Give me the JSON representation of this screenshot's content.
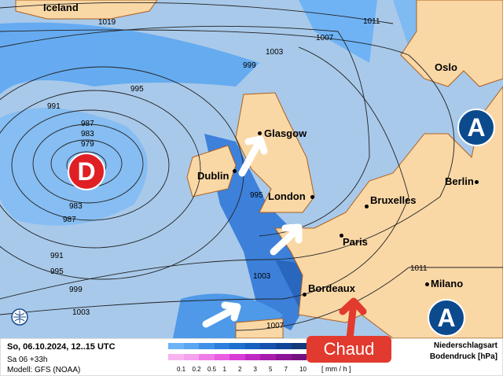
{
  "colors": {
    "ocean": "#a8c9ea",
    "land": "#fad8a6",
    "border": "#b0601a",
    "rain_light": "#66b0f8",
    "rain_mid": "#3a88e6",
    "rain_dark": "#1456b8",
    "low": "#e01f24",
    "high": "#0c4a8e",
    "arrow_white": "#ffffff",
    "arrow_red": "#e23a2e"
  },
  "pressure_centers": [
    {
      "label": "D",
      "type": "low"
    },
    {
      "label": "A",
      "type": "high"
    },
    {
      "label": "A",
      "type": "high"
    }
  ],
  "places": [
    "Iceland",
    "Oslo",
    "Glasgow",
    "Dublin",
    "London",
    "Berlin",
    "Bruxelles",
    "Paris",
    "Bordeaux",
    "Milano"
  ],
  "isobars": [
    "1019",
    "1011",
    "1007",
    "1003",
    "999",
    "995",
    "991",
    "987",
    "983",
    "979",
    "983",
    "987",
    "991",
    "995",
    "999",
    "1003",
    "995",
    "1003",
    "1007",
    "1011"
  ],
  "annotation": "Chaud",
  "icons": {
    "logo": "globe-logo-icon",
    "arrows": "wind-direction-arrow-icon"
  },
  "footer": {
    "date": "So, 06.10.2024, 12..15 UTC",
    "run": "Sa 06 +33h",
    "model": "Modell: GFS (NOAA)",
    "legend_ticks": [
      "0.1",
      "0.2",
      "0.5",
      "1",
      "2",
      "3",
      "5",
      "7",
      "10"
    ],
    "unit": "[ mm / h ]",
    "title1": "Niederschlagsart",
    "title2": "Bodendruck [hPa]",
    "rain_colors": [
      "#6cb4f8",
      "#5aa6f2",
      "#3f91e8",
      "#2a7fde",
      "#1d6fd0",
      "#1660c0",
      "#1452ae",
      "#0f4598",
      "#123a7a"
    ],
    "snow_colors": [
      "#f8b4f0",
      "#f6a0ee",
      "#f07ce8",
      "#ea5ee2",
      "#d83cd6",
      "#c028c4",
      "#a61cac",
      "#8c1496",
      "#761080"
    ]
  }
}
